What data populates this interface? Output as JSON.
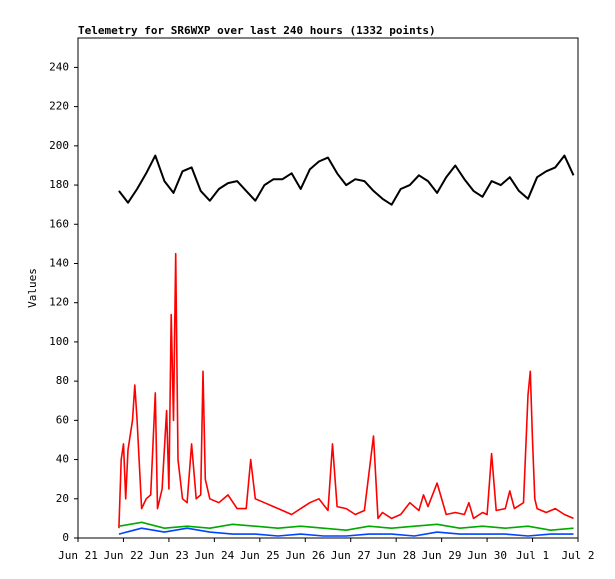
{
  "chart_data": {
    "type": "line",
    "title": "Telemetry for SR6WXP over last 240 hours (1332 points)",
    "y_label": "Values",
    "xlim": [
      0,
      11
    ],
    "xticks": [
      {
        "value": 0,
        "label": "Jun 21"
      },
      {
        "value": 1,
        "label": "Jun 22"
      },
      {
        "value": 2,
        "label": "Jun 23"
      },
      {
        "value": 3,
        "label": "Jun 24"
      },
      {
        "value": 4,
        "label": "Jun 25"
      },
      {
        "value": 5,
        "label": "Jun 26"
      },
      {
        "value": 6,
        "label": "Jun 27"
      },
      {
        "value": 7,
        "label": "Jun 28"
      },
      {
        "value": 8,
        "label": "Jun 29"
      },
      {
        "value": 9,
        "label": "Jun 30"
      },
      {
        "value": 10,
        "label": "Jul 1"
      },
      {
        "value": 11,
        "label": "Jul 2"
      }
    ],
    "ylim": [
      0,
      255
    ],
    "yticks": [
      0,
      20,
      40,
      60,
      80,
      100,
      120,
      140,
      160,
      180,
      200,
      220,
      240
    ],
    "grid": false,
    "series": [
      {
        "color": "#000000",
        "x": [
          0.9,
          1.1,
          1.3,
          1.5,
          1.7,
          1.9,
          2.1,
          2.3,
          2.5,
          2.7,
          2.9,
          3.1,
          3.3,
          3.5,
          3.7,
          3.9,
          4.1,
          4.3,
          4.5,
          4.7,
          4.9,
          5.1,
          5.3,
          5.5,
          5.7,
          5.9,
          6.1,
          6.3,
          6.5,
          6.7,
          6.9,
          7.1,
          7.3,
          7.5,
          7.7,
          7.9,
          8.1,
          8.3,
          8.5,
          8.7,
          8.9,
          9.1,
          9.3,
          9.5,
          9.7,
          9.9,
          10.1,
          10.3,
          10.5,
          10.7,
          10.9
        ],
        "values": [
          177,
          171,
          178,
          186,
          195,
          182,
          176,
          187,
          189,
          177,
          172,
          178,
          181,
          182,
          177,
          172,
          180,
          183,
          183,
          186,
          178,
          188,
          192,
          194,
          186,
          180,
          183,
          182,
          177,
          173,
          170,
          178,
          180,
          185,
          182,
          176,
          184,
          190,
          183,
          177,
          174,
          182,
          180,
          184,
          177,
          173,
          184,
          187,
          189,
          195,
          185
        ]
      },
      {
        "color": "#ff0000",
        "x": [
          0.9,
          0.95,
          1.0,
          1.05,
          1.1,
          1.2,
          1.25,
          1.3,
          1.4,
          1.5,
          1.6,
          1.7,
          1.75,
          1.85,
          1.95,
          2.0,
          2.05,
          2.1,
          2.15,
          2.2,
          2.3,
          2.4,
          2.5,
          2.6,
          2.7,
          2.75,
          2.8,
          2.9,
          3.1,
          3.3,
          3.5,
          3.7,
          3.8,
          3.9,
          4.1,
          4.3,
          4.5,
          4.7,
          4.9,
          5.1,
          5.3,
          5.5,
          5.6,
          5.7,
          5.9,
          6.1,
          6.3,
          6.5,
          6.6,
          6.7,
          6.9,
          7.1,
          7.3,
          7.5,
          7.6,
          7.7,
          7.9,
          8.1,
          8.3,
          8.5,
          8.6,
          8.7,
          8.9,
          9.0,
          9.1,
          9.2,
          9.4,
          9.5,
          9.6,
          9.8,
          9.9,
          9.95,
          10.0,
          10.05,
          10.1,
          10.3,
          10.5,
          10.7,
          10.9
        ],
        "values": [
          5,
          40,
          48,
          20,
          45,
          60,
          78,
          60,
          15,
          20,
          22,
          74,
          15,
          25,
          65,
          25,
          114,
          60,
          145,
          40,
          20,
          18,
          48,
          20,
          22,
          85,
          30,
          20,
          18,
          22,
          15,
          15,
          40,
          20,
          18,
          16,
          14,
          12,
          15,
          18,
          20,
          14,
          48,
          16,
          15,
          12,
          14,
          52,
          10,
          13,
          10,
          12,
          18,
          14,
          22,
          16,
          28,
          12,
          13,
          12,
          18,
          10,
          13,
          12,
          43,
          14,
          15,
          24,
          15,
          18,
          73,
          85,
          50,
          20,
          15,
          13,
          15,
          12,
          10
        ]
      },
      {
        "color": "#00aa00",
        "x": [
          0.9,
          1.4,
          1.9,
          2.4,
          2.9,
          3.4,
          3.9,
          4.4,
          4.9,
          5.4,
          5.9,
          6.4,
          6.9,
          7.4,
          7.9,
          8.4,
          8.9,
          9.4,
          9.9,
          10.4,
          10.9
        ],
        "values": [
          6,
          8,
          5,
          6,
          5,
          7,
          6,
          5,
          6,
          5,
          4,
          6,
          5,
          6,
          7,
          5,
          6,
          5,
          6,
          4,
          5
        ]
      },
      {
        "color": "#0044ff",
        "x": [
          0.9,
          1.4,
          1.9,
          2.4,
          2.9,
          3.4,
          3.9,
          4.4,
          4.9,
          5.4,
          5.9,
          6.4,
          6.9,
          7.4,
          7.9,
          8.4,
          8.9,
          9.4,
          9.9,
          10.4,
          10.9
        ],
        "values": [
          2,
          5,
          3,
          5,
          3,
          2,
          2,
          1,
          2,
          1,
          1,
          2,
          2,
          1,
          3,
          2,
          2,
          2,
          1,
          2,
          2
        ]
      }
    ]
  }
}
